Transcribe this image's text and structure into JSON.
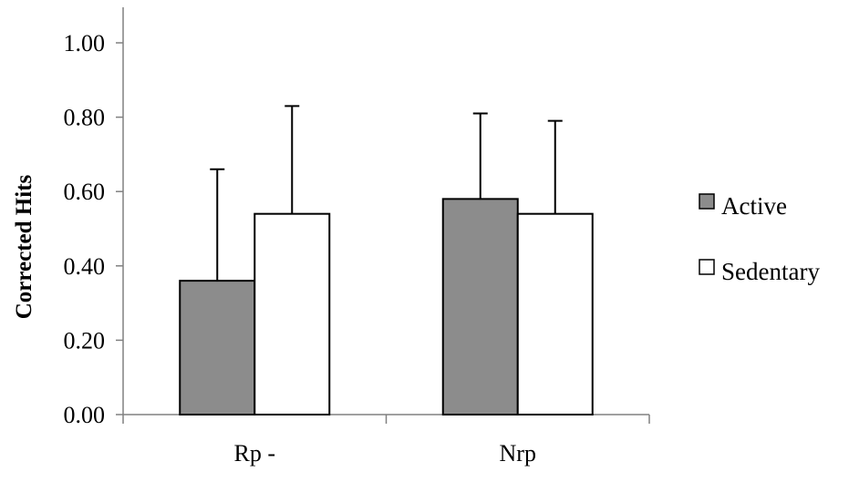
{
  "chart_data": {
    "type": "bar",
    "categories": [
      "Rp -",
      "Nrp"
    ],
    "series": [
      {
        "name": "Active",
        "color": "#8c8c8c",
        "values": [
          0.36,
          0.58
        ],
        "error_upper": [
          0.66,
          0.81
        ]
      },
      {
        "name": "Sedentary",
        "color": "#ffffff",
        "values": [
          0.54,
          0.54
        ],
        "error_upper": [
          0.83,
          0.79
        ]
      }
    ],
    "ylabel": "Corrected Hits",
    "xlabel": "",
    "ylim": [
      0,
      1
    ],
    "yticks": [
      0,
      0.2,
      0.4,
      0.6,
      0.8,
      1.0
    ],
    "ytick_labels": [
      "0.00",
      "0.20",
      "0.40",
      "0.60",
      "0.80",
      "1.00"
    ],
    "legend_position": "right",
    "grid": false
  }
}
